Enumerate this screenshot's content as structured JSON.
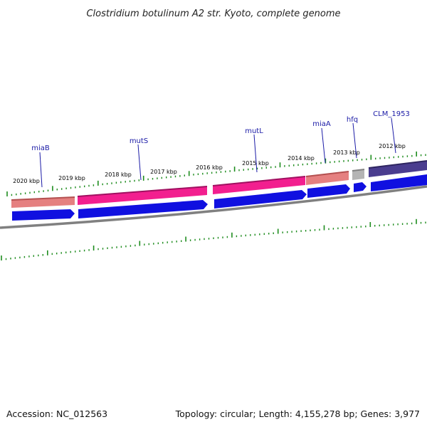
{
  "title": "Clostridium botulinum A2 str. Kyoto, complete genome",
  "footer": {
    "accession": "Accession: NC_012563",
    "summary": "Topology: circular; Length: 4,155,278 bp; Genes: 3,977"
  },
  "colors": {
    "background": "#ffffff",
    "tick": "#1e8c1e",
    "backbone": "#808080",
    "cds_blue": "#1010e0",
    "gene_pink": "#f21f8f",
    "gene_salmon": "#e58080",
    "gene_gray": "#b4b4b4",
    "gene_purple": "#4a3d8f",
    "label_blue": "#1a1aa6"
  },
  "scale_labels": [
    "2020 kbp",
    "2019 kbp",
    "2018 kbp",
    "2017 kbp",
    "2016 kbp",
    "2015 kbp",
    "2014 kbp",
    "2013 kbp",
    "2012 kbp"
  ],
  "gene_labels": [
    "miaB",
    "mutS",
    "mutL",
    "miaA",
    "hfq",
    "CLM_1953"
  ]
}
